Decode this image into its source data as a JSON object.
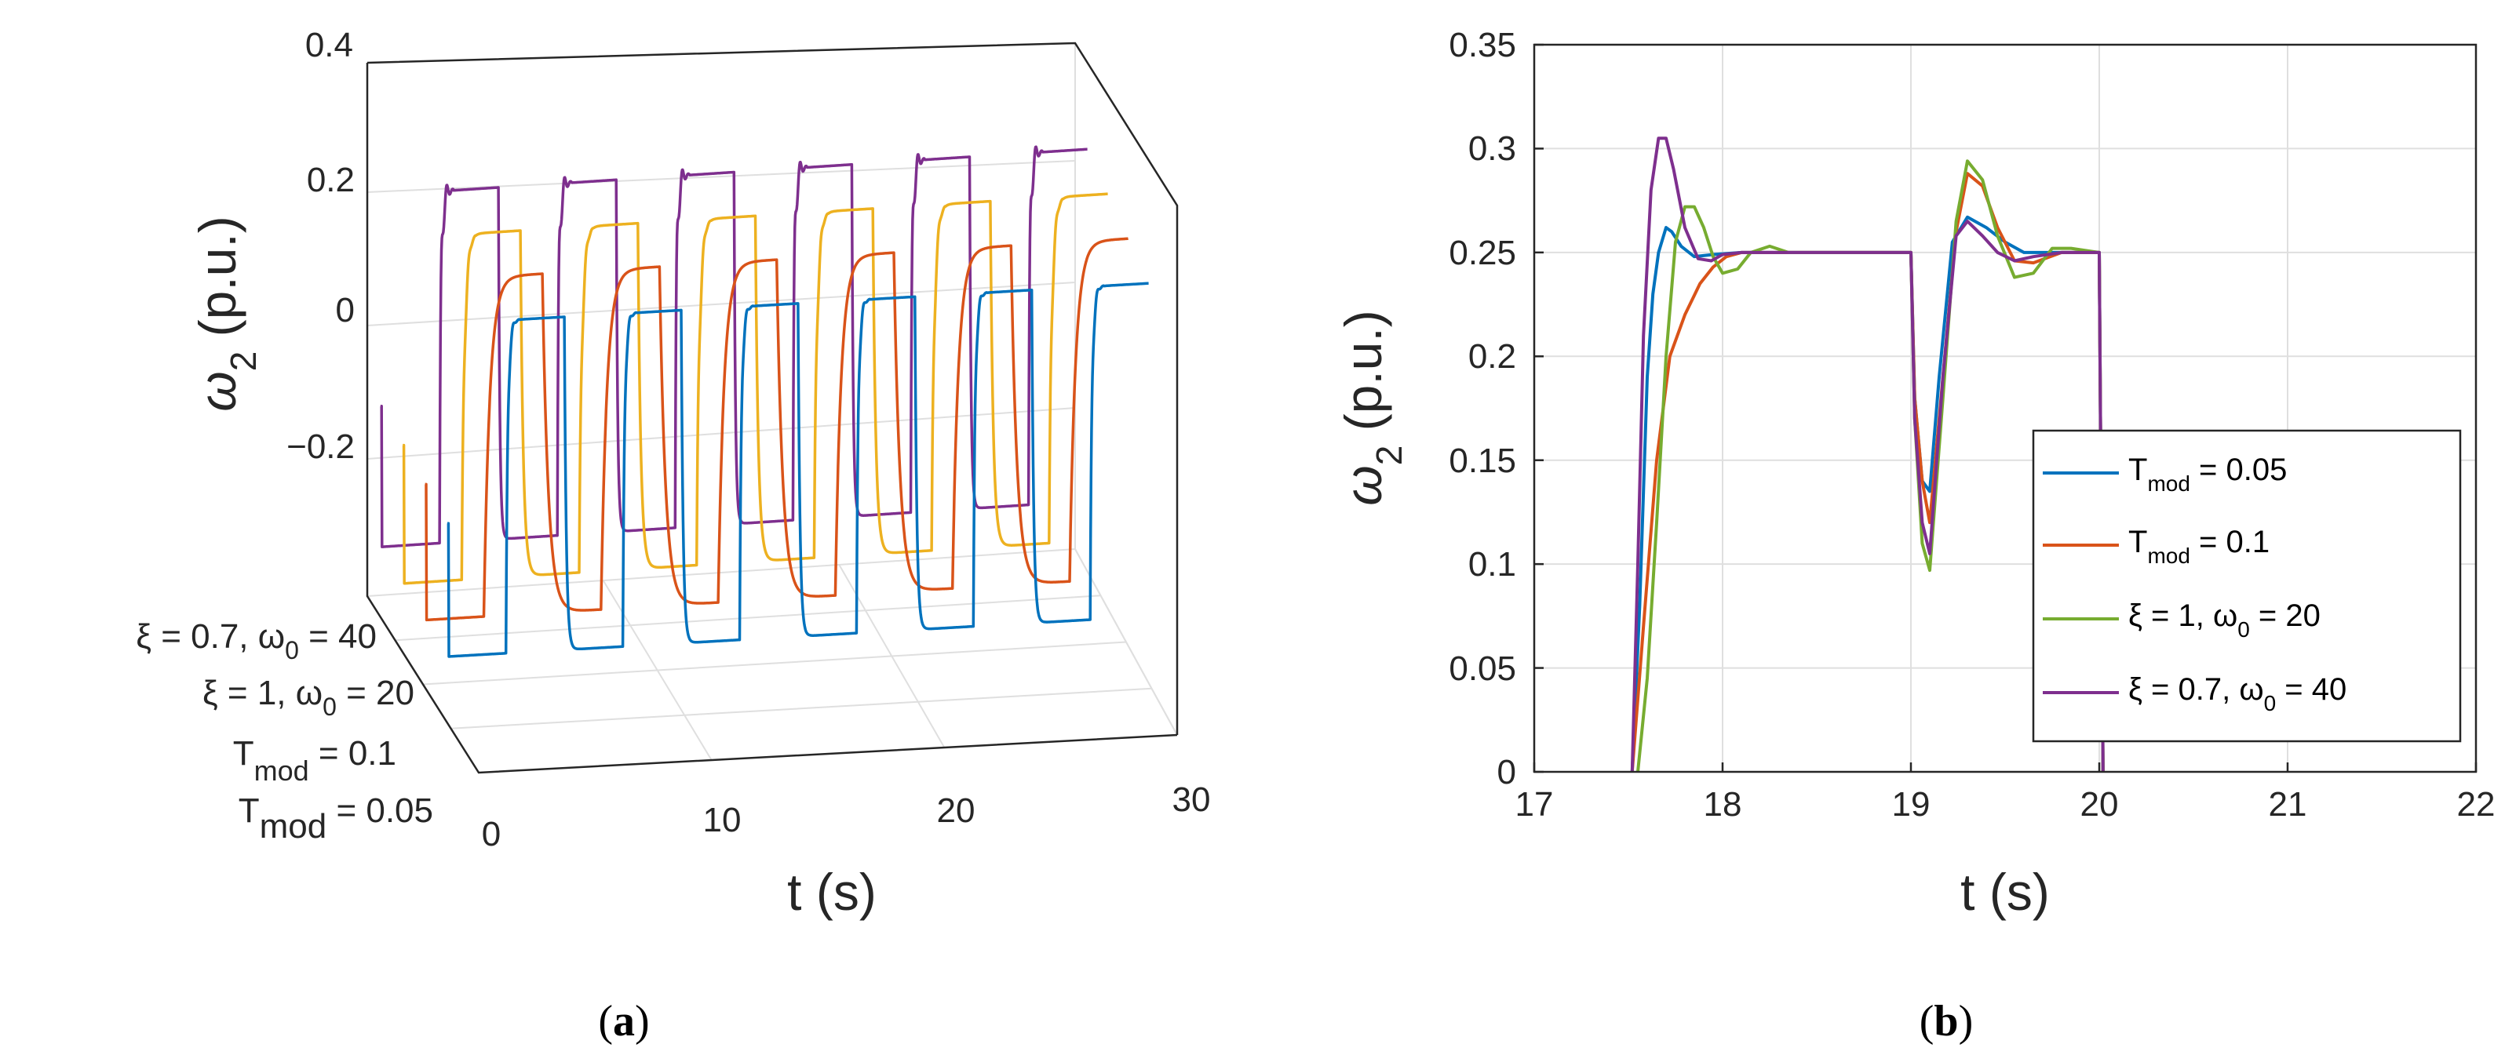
{
  "colors": {
    "blue": "#0072BD",
    "orange": "#D95319",
    "yellow": "#EDB120",
    "green": "#77AC30",
    "purple": "#7E2F8E",
    "grid": "#DFDFDF",
    "axis": "#262626"
  },
  "chart_data": [
    {
      "panel": "a",
      "type": "line",
      "view": "3d",
      "panel_label": {
        "open": "(",
        "letter": "a",
        "close": ")"
      },
      "xlabel": "t (s)",
      "ylabel_main": "ω",
      "ylabel_sub": "2",
      "ylabel_rest": " (p.u.)",
      "xlim": [
        0,
        30
      ],
      "x_ticks": [
        "0",
        "10",
        "20",
        "30"
      ],
      "z_ticks": [
        "0.4",
        "0.2",
        "0",
        "−0.2"
      ],
      "zlim": [
        -0.35,
        0.4
      ],
      "depth_labels": [
        {
          "pre": "T",
          "sub": "mod",
          "post": " = 0.05"
        },
        {
          "pre": "T",
          "sub": "mod",
          "post": " = 0.1"
        },
        {
          "pre": "ξ = 1, ω",
          "sub": "0",
          "post": " = 20"
        },
        {
          "pre": "ξ = 0.7, ω",
          "sub": "0",
          "post": " = 40"
        }
      ],
      "series_colors": [
        "blue",
        "orange",
        "yellow",
        "purple"
      ],
      "square_wave": {
        "low": -0.25,
        "high": 0.25,
        "period_s": 5,
        "step_up_s": 2.5
      }
    },
    {
      "panel": "b",
      "type": "line",
      "panel_label": {
        "open": "(",
        "letter": "b",
        "close": ")"
      },
      "xlabel": "t (s)",
      "ylabel_main": "ω",
      "ylabel_sub": "2",
      "ylabel_rest": " (p.u.)",
      "xlim": [
        17,
        22
      ],
      "ylim": [
        0,
        0.35
      ],
      "x_ticks": [
        17,
        18,
        19,
        20,
        21,
        22
      ],
      "y_ticks": [
        0,
        0.05,
        0.1,
        0.15,
        0.2,
        0.25,
        0.3,
        0.35
      ],
      "y_tick_labels": [
        "0",
        "0.05",
        "0.1",
        "0.15",
        "0.2",
        "0.25",
        "0.3",
        "0.35"
      ],
      "x_tick_labels": [
        "17",
        "18",
        "19",
        "20",
        "21",
        "22"
      ],
      "grid": true,
      "legend_position": "bottom-right",
      "legend": [
        {
          "pre": "T",
          "sub": "mod",
          "post": " = 0.05",
          "color": "blue"
        },
        {
          "pre": "T",
          "sub": "mod",
          "post": " = 0.1",
          "color": "orange"
        },
        {
          "pre": "ξ = 1, ω",
          "sub": "0",
          "post": " = 20",
          "color": "green"
        },
        {
          "pre": "ξ = 0.7, ω",
          "sub": "0",
          "post": " = 40",
          "color": "purple"
        }
      ],
      "series": [
        {
          "color": "blue",
          "x": [
            17.52,
            17.56,
            17.6,
            17.63,
            17.66,
            17.7,
            17.73,
            17.78,
            17.85,
            17.95,
            18.1,
            18.5,
            19.0,
            19.02,
            19.06,
            19.1,
            19.15,
            19.22,
            19.3,
            19.4,
            19.5,
            19.6,
            19.8,
            20.0,
            20.02
          ],
          "y": [
            0.0,
            0.08,
            0.19,
            0.23,
            0.25,
            0.262,
            0.26,
            0.253,
            0.248,
            0.249,
            0.25,
            0.25,
            0.25,
            0.18,
            0.14,
            0.135,
            0.19,
            0.255,
            0.267,
            0.262,
            0.255,
            0.25,
            0.25,
            0.25,
            0.0
          ]
        },
        {
          "color": "orange",
          "x": [
            17.52,
            17.58,
            17.65,
            17.72,
            17.8,
            17.88,
            17.95,
            18.02,
            18.1,
            18.3,
            19.0,
            19.02,
            19.06,
            19.1,
            19.17,
            19.24,
            19.3,
            19.38,
            19.46,
            19.55,
            19.65,
            19.8,
            20.0,
            20.02
          ],
          "y": [
            0.0,
            0.07,
            0.15,
            0.2,
            0.22,
            0.235,
            0.243,
            0.248,
            0.25,
            0.25,
            0.25,
            0.18,
            0.14,
            0.12,
            0.19,
            0.26,
            0.288,
            0.282,
            0.262,
            0.246,
            0.245,
            0.25,
            0.25,
            0.0
          ]
        },
        {
          "color": "green",
          "x": [
            17.55,
            17.6,
            17.65,
            17.7,
            17.75,
            17.8,
            17.85,
            17.9,
            17.95,
            18.0,
            18.08,
            18.15,
            18.25,
            18.35,
            18.5,
            19.0,
            19.02,
            19.06,
            19.1,
            19.17,
            19.24,
            19.3,
            19.38,
            19.46,
            19.55,
            19.65,
            19.75,
            19.85,
            20.0,
            20.02
          ],
          "y": [
            0.0,
            0.045,
            0.12,
            0.2,
            0.255,
            0.272,
            0.272,
            0.262,
            0.248,
            0.24,
            0.242,
            0.25,
            0.253,
            0.25,
            0.25,
            0.25,
            0.17,
            0.11,
            0.097,
            0.18,
            0.265,
            0.294,
            0.285,
            0.258,
            0.238,
            0.24,
            0.252,
            0.252,
            0.25,
            0.0
          ]
        },
        {
          "color": "purple",
          "x": [
            17.52,
            17.55,
            17.58,
            17.62,
            17.66,
            17.7,
            17.74,
            17.8,
            17.87,
            17.94,
            18.0,
            18.1,
            18.5,
            19.0,
            19.02,
            19.06,
            19.1,
            19.17,
            19.24,
            19.3,
            19.38,
            19.46,
            19.55,
            19.65,
            19.8,
            20.0,
            20.02
          ],
          "y": [
            0.0,
            0.1,
            0.21,
            0.28,
            0.305,
            0.305,
            0.29,
            0.262,
            0.247,
            0.246,
            0.249,
            0.25,
            0.25,
            0.25,
            0.17,
            0.12,
            0.105,
            0.19,
            0.258,
            0.265,
            0.258,
            0.25,
            0.246,
            0.248,
            0.25,
            0.25,
            0.0
          ]
        }
      ]
    }
  ]
}
